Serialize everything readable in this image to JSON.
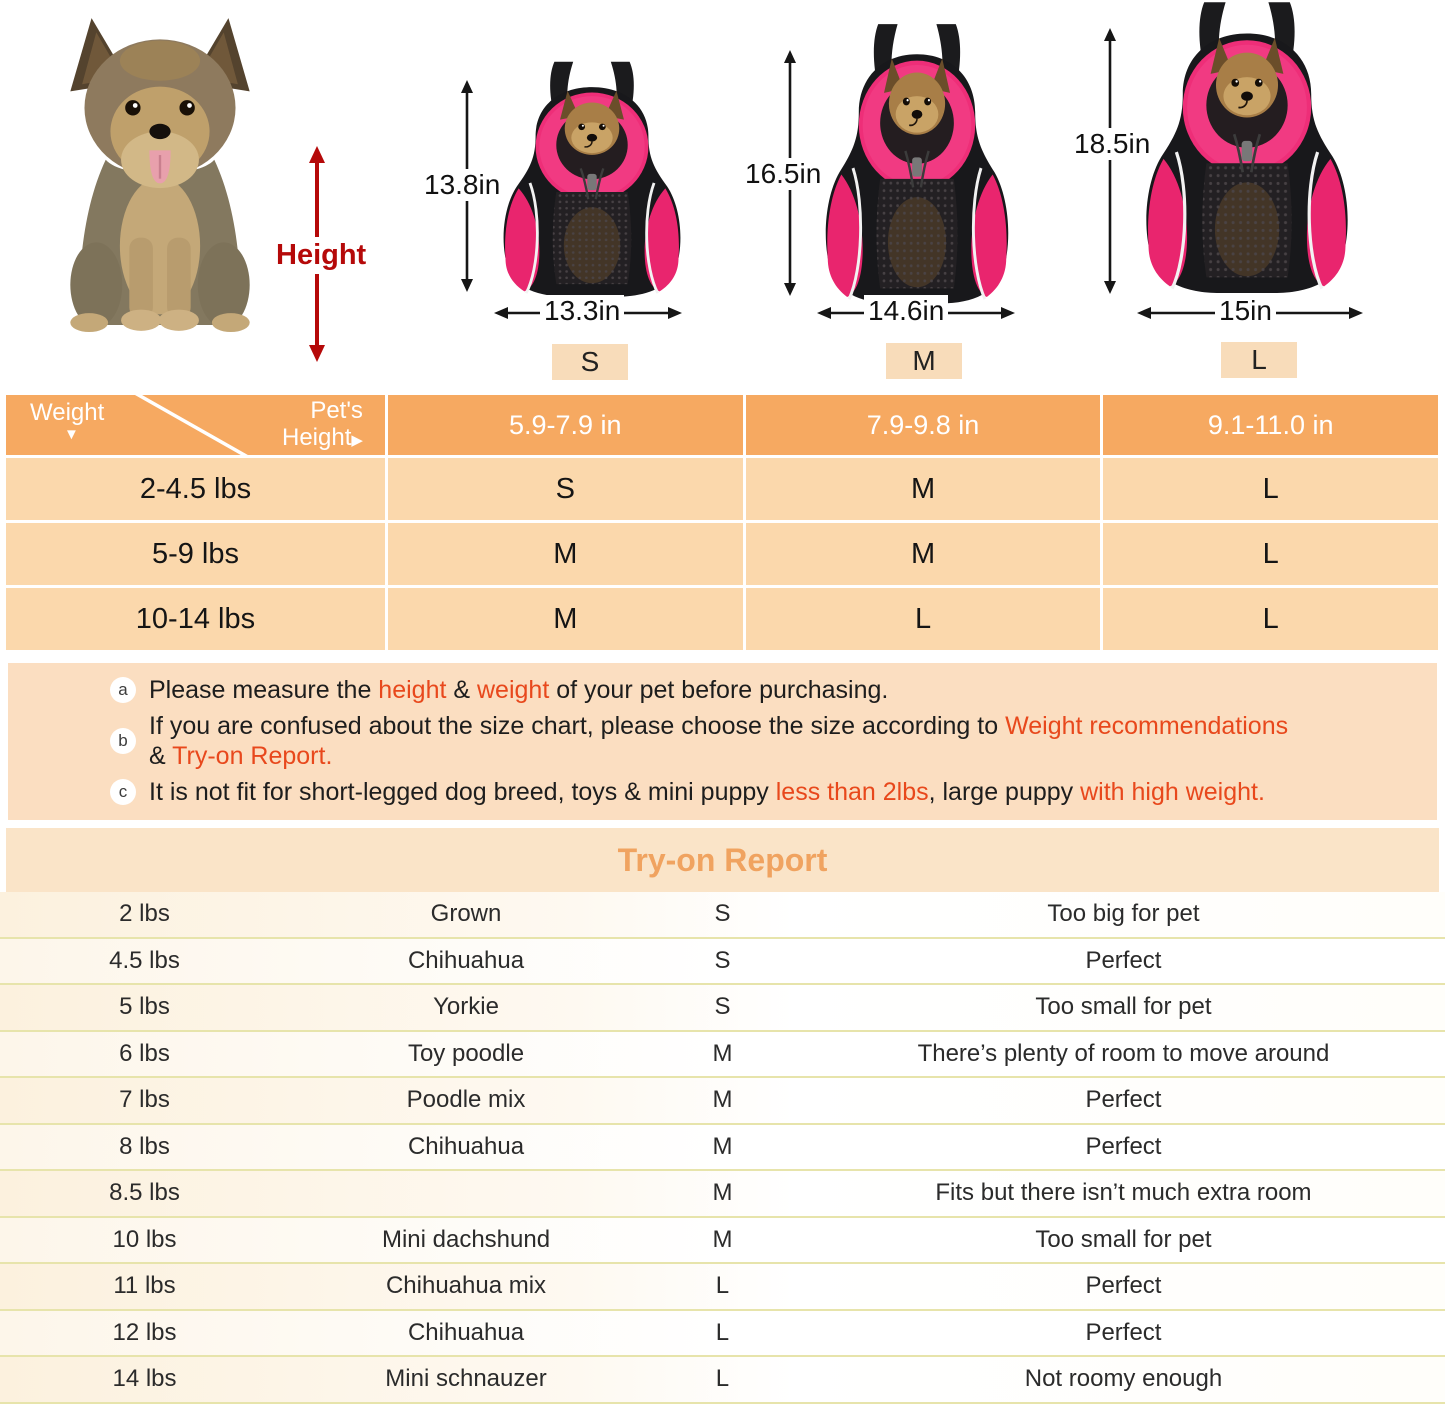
{
  "diagram": {
    "height_label": "Height",
    "sizes": [
      {
        "label": "S",
        "height_in": "13.8in",
        "width_in": "13.3in"
      },
      {
        "label": "M",
        "height_in": "16.5in",
        "width_in": "14.6in"
      },
      {
        "label": "L",
        "height_in": "18.5in",
        "width_in": "15in"
      }
    ]
  },
  "size_table": {
    "corner": {
      "row_axis": "Weight",
      "col_axis_line1": "Pet's",
      "col_axis_line2": "Height"
    },
    "columns": [
      "5.9-7.9 in",
      "7.9-9.8 in",
      "9.1-11.0 in"
    ],
    "rows": [
      {
        "weight": "2-4.5 lbs",
        "sizes": [
          "S",
          "M",
          "L"
        ]
      },
      {
        "weight": "5-9 lbs",
        "sizes": [
          "M",
          "M",
          "L"
        ]
      },
      {
        "weight": "10-14 lbs",
        "sizes": [
          "M",
          "L",
          "L"
        ]
      }
    ]
  },
  "notes": [
    {
      "marker": "a",
      "segments": [
        {
          "t": "Please measure the "
        },
        {
          "t": "height",
          "red": true
        },
        {
          "t": " & "
        },
        {
          "t": "weight",
          "red": true
        },
        {
          "t": " of your pet before purchasing."
        }
      ]
    },
    {
      "marker": "b",
      "segments": [
        {
          "t": "If you are confused about the size chart, please choose the size according to "
        },
        {
          "t": "Weight recommendations",
          "red": true
        },
        {
          "br": true
        },
        {
          "t": "& "
        },
        {
          "t": "Try-on Report.",
          "red": true
        }
      ]
    },
    {
      "marker": "c",
      "segments": [
        {
          "t": "It is not fit for short-legged dog breed, toys & mini puppy "
        },
        {
          "t": "less than 2lbs",
          "red": true
        },
        {
          "t": ", large puppy "
        },
        {
          "t": "with high weight.",
          "red": true
        }
      ]
    }
  ],
  "tryon": {
    "title": "Try-on Report",
    "rows": [
      {
        "weight": "2 lbs",
        "breed": "Grown",
        "size": "S",
        "comment": "Too big for pet"
      },
      {
        "weight": "4.5 lbs",
        "breed": "Chihuahua",
        "size": "S",
        "comment": "Perfect"
      },
      {
        "weight": "5 lbs",
        "breed": "Yorkie",
        "size": "S",
        "comment": "Too small for pet"
      },
      {
        "weight": "6 lbs",
        "breed": "Toy poodle",
        "size": "M",
        "comment": "There’s plenty of room to move around"
      },
      {
        "weight": "7 lbs",
        "breed": "Poodle mix",
        "size": "M",
        "comment": "Perfect"
      },
      {
        "weight": "8 lbs",
        "breed": "Chihuahua",
        "size": "M",
        "comment": "Perfect"
      },
      {
        "weight": "8.5 lbs",
        "breed": "",
        "size": "M",
        "comment": "Fits but there isn’t much extra room"
      },
      {
        "weight": "10 lbs",
        "breed": "Mini dachshund",
        "size": "M",
        "comment": "Too small for pet"
      },
      {
        "weight": "11 lbs",
        "breed": "Chihuahua mix",
        "size": "L",
        "comment": "Perfect"
      },
      {
        "weight": "12 lbs",
        "breed": "Chihuahua",
        "size": "L",
        "comment": "Perfect"
      },
      {
        "weight": "14 lbs",
        "breed": "Mini schnauzer",
        "size": "L",
        "comment": "Not roomy enough"
      }
    ]
  },
  "colors": {
    "header_orange": "#F6A961",
    "row_peach": "#FBD8AC",
    "notes_bg": "#FBDEC1",
    "band_bg": "#FAE4C8",
    "title_orange": "#F0A360",
    "size_tag_bg": "#F8DCBA",
    "red_text": "#E8481C",
    "height_arrow_red": "#B50909",
    "separator_yellow": "#E7E4AB",
    "backpack_pink": "#EE2E78"
  }
}
